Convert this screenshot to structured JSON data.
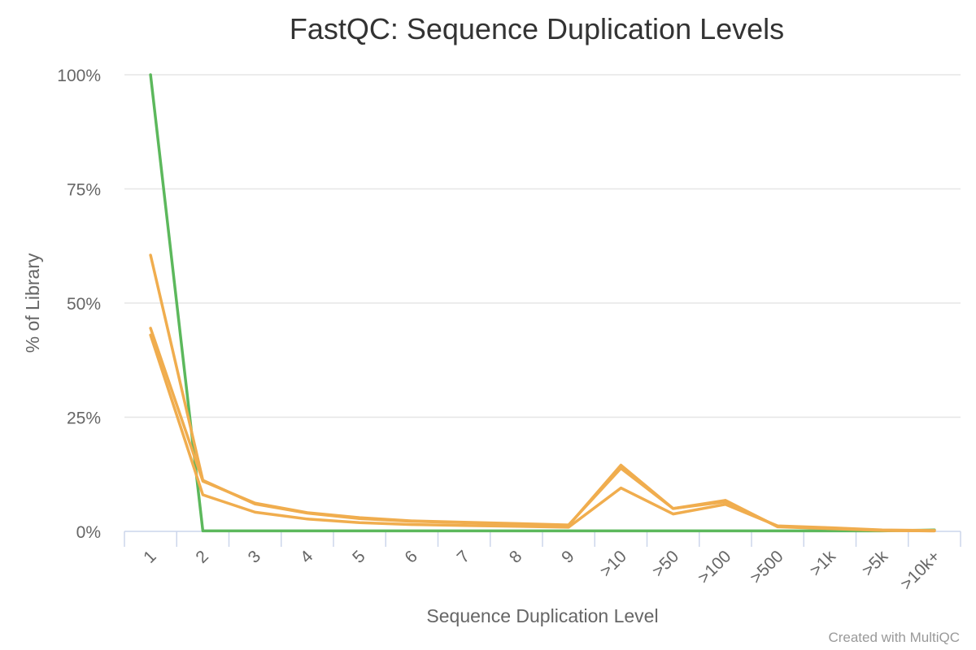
{
  "chart_data": {
    "type": "line",
    "title": "FastQC: Sequence Duplication Levels",
    "xlabel": "Sequence Duplication Level",
    "ylabel": "% of Library",
    "credit": "Created with MultiQC",
    "categories": [
      "1",
      "2",
      "3",
      "4",
      "5",
      "6",
      "7",
      "8",
      "9",
      ">10",
      ">50",
      ">100",
      ">500",
      ">1k",
      ">5k",
      ">10k+"
    ],
    "y_ticks": [
      {
        "value": 0,
        "label": "0%"
      },
      {
        "value": 25,
        "label": "25%"
      },
      {
        "value": 50,
        "label": "50%"
      },
      {
        "value": 75,
        "label": "75%"
      },
      {
        "value": 100,
        "label": "100%"
      }
    ],
    "ylim": [
      0,
      100
    ],
    "grid": true,
    "legend": "none",
    "series": [
      {
        "color": "#5cb85c",
        "values": [
          100,
          0.1,
          0.1,
          0.1,
          0.1,
          0.1,
          0.1,
          0.1,
          0.1,
          0.1,
          0.1,
          0.1,
          0.1,
          0.1,
          0.1,
          0.3
        ]
      },
      {
        "color": "#f0ad4e",
        "values": [
          60.5,
          11.2,
          6.0,
          4.0,
          2.8,
          2.2,
          1.9,
          1.6,
          1.3,
          14.5,
          5.0,
          6.8,
          1.0,
          0.6,
          0.2,
          0.1
        ]
      },
      {
        "color": "#f0ad4e",
        "values": [
          44.5,
          11.0,
          6.2,
          4.1,
          3.0,
          2.3,
          2.0,
          1.7,
          1.4,
          13.8,
          5.0,
          6.5,
          1.1,
          0.7,
          0.2,
          0.1
        ]
      },
      {
        "color": "#f0ad4e",
        "values": [
          43.0,
          8.0,
          4.2,
          2.7,
          1.9,
          1.5,
          1.3,
          1.1,
          0.9,
          9.5,
          3.8,
          5.9,
          1.2,
          0.8,
          0.3,
          0.2
        ]
      }
    ]
  }
}
